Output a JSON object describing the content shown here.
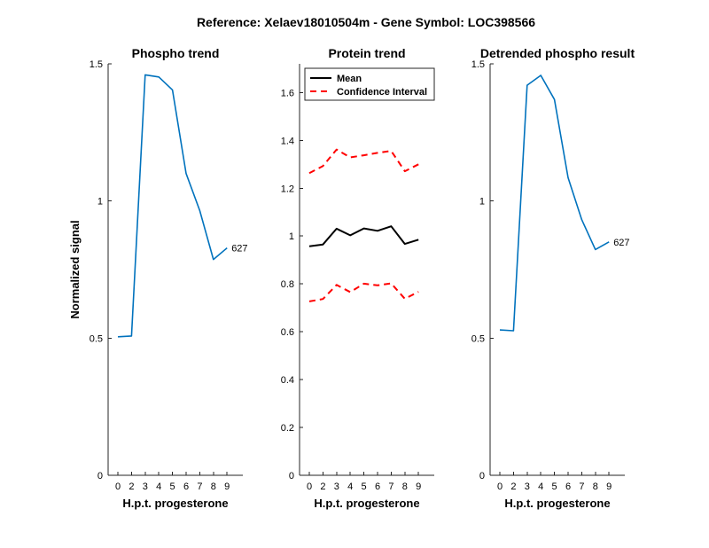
{
  "figure": {
    "suptitle": "Reference:  Xelaev18010504m - Gene Symbol:  LOC398566"
  },
  "chart_data": [
    {
      "type": "line",
      "title": "Phospho trend",
      "xlabel": "H.p.t. progesterone",
      "ylabel": "Normalized signal",
      "categories": [
        "0",
        "2",
        "3",
        "4",
        "5",
        "6",
        "7",
        "8",
        "9"
      ],
      "ylim": [
        0,
        1.5
      ],
      "yticks": [
        0,
        0.5,
        1,
        1.5
      ],
      "ytick_labels": [
        "0",
        "0.5",
        "1",
        "1.5"
      ],
      "series": [
        {
          "values": [
            0.505,
            0.508,
            1.46,
            1.452,
            1.405,
            1.1,
            0.965,
            0.787,
            0.829
          ],
          "color": "#0072BD",
          "end_label": "627"
        }
      ],
      "grid": false
    },
    {
      "type": "line",
      "title": "Protein trend",
      "xlabel": "H.p.t. progesterone",
      "ylabel": "",
      "categories": [
        "0",
        "2",
        "3",
        "4",
        "5",
        "6",
        "7",
        "8",
        "9"
      ],
      "ylim": [
        0,
        1.72
      ],
      "yticks": [
        0,
        0.2,
        0.4,
        0.6,
        0.8,
        1,
        1.2,
        1.4,
        1.6
      ],
      "ytick_labels": [
        "0",
        "0.2",
        "0.4",
        "0.6",
        "0.8",
        "1",
        "1.2",
        "1.4",
        "1.6"
      ],
      "series": [
        {
          "name": "Mean",
          "values": [
            0.957,
            0.965,
            1.031,
            1.003,
            1.032,
            1.022,
            1.041,
            0.967,
            0.985
          ],
          "color": "#000000",
          "style": "solid"
        },
        {
          "name": "Confidence Interval",
          "values": [
            1.263,
            1.293,
            1.362,
            1.329,
            1.338,
            1.348,
            1.356,
            1.271,
            1.3
          ],
          "color": "#FF0000",
          "style": "dashed"
        },
        {
          "values": [
            0.727,
            0.737,
            0.796,
            0.766,
            0.801,
            0.794,
            0.802,
            0.738,
            0.767
          ],
          "color": "#FF0000",
          "style": "dashed"
        }
      ],
      "legend": {
        "location": "top-left",
        "entries": [
          "Mean",
          "Confidence Interval"
        ]
      },
      "grid": false
    },
    {
      "type": "line",
      "title": "Detrended phospho result",
      "xlabel": "H.p.t. progesterone",
      "ylabel": "",
      "categories": [
        "0",
        "2",
        "3",
        "4",
        "5",
        "6",
        "7",
        "8",
        "9"
      ],
      "ylim": [
        0,
        1.5
      ],
      "yticks": [
        0,
        0.5,
        1,
        1.5
      ],
      "ytick_labels": [
        "0",
        "0.5",
        "1",
        "1.5"
      ],
      "series": [
        {
          "values": [
            0.53,
            0.527,
            1.422,
            1.458,
            1.37,
            1.085,
            0.932,
            0.823,
            0.851
          ],
          "color": "#0072BD",
          "end_label": "627"
        }
      ],
      "grid": false
    }
  ]
}
